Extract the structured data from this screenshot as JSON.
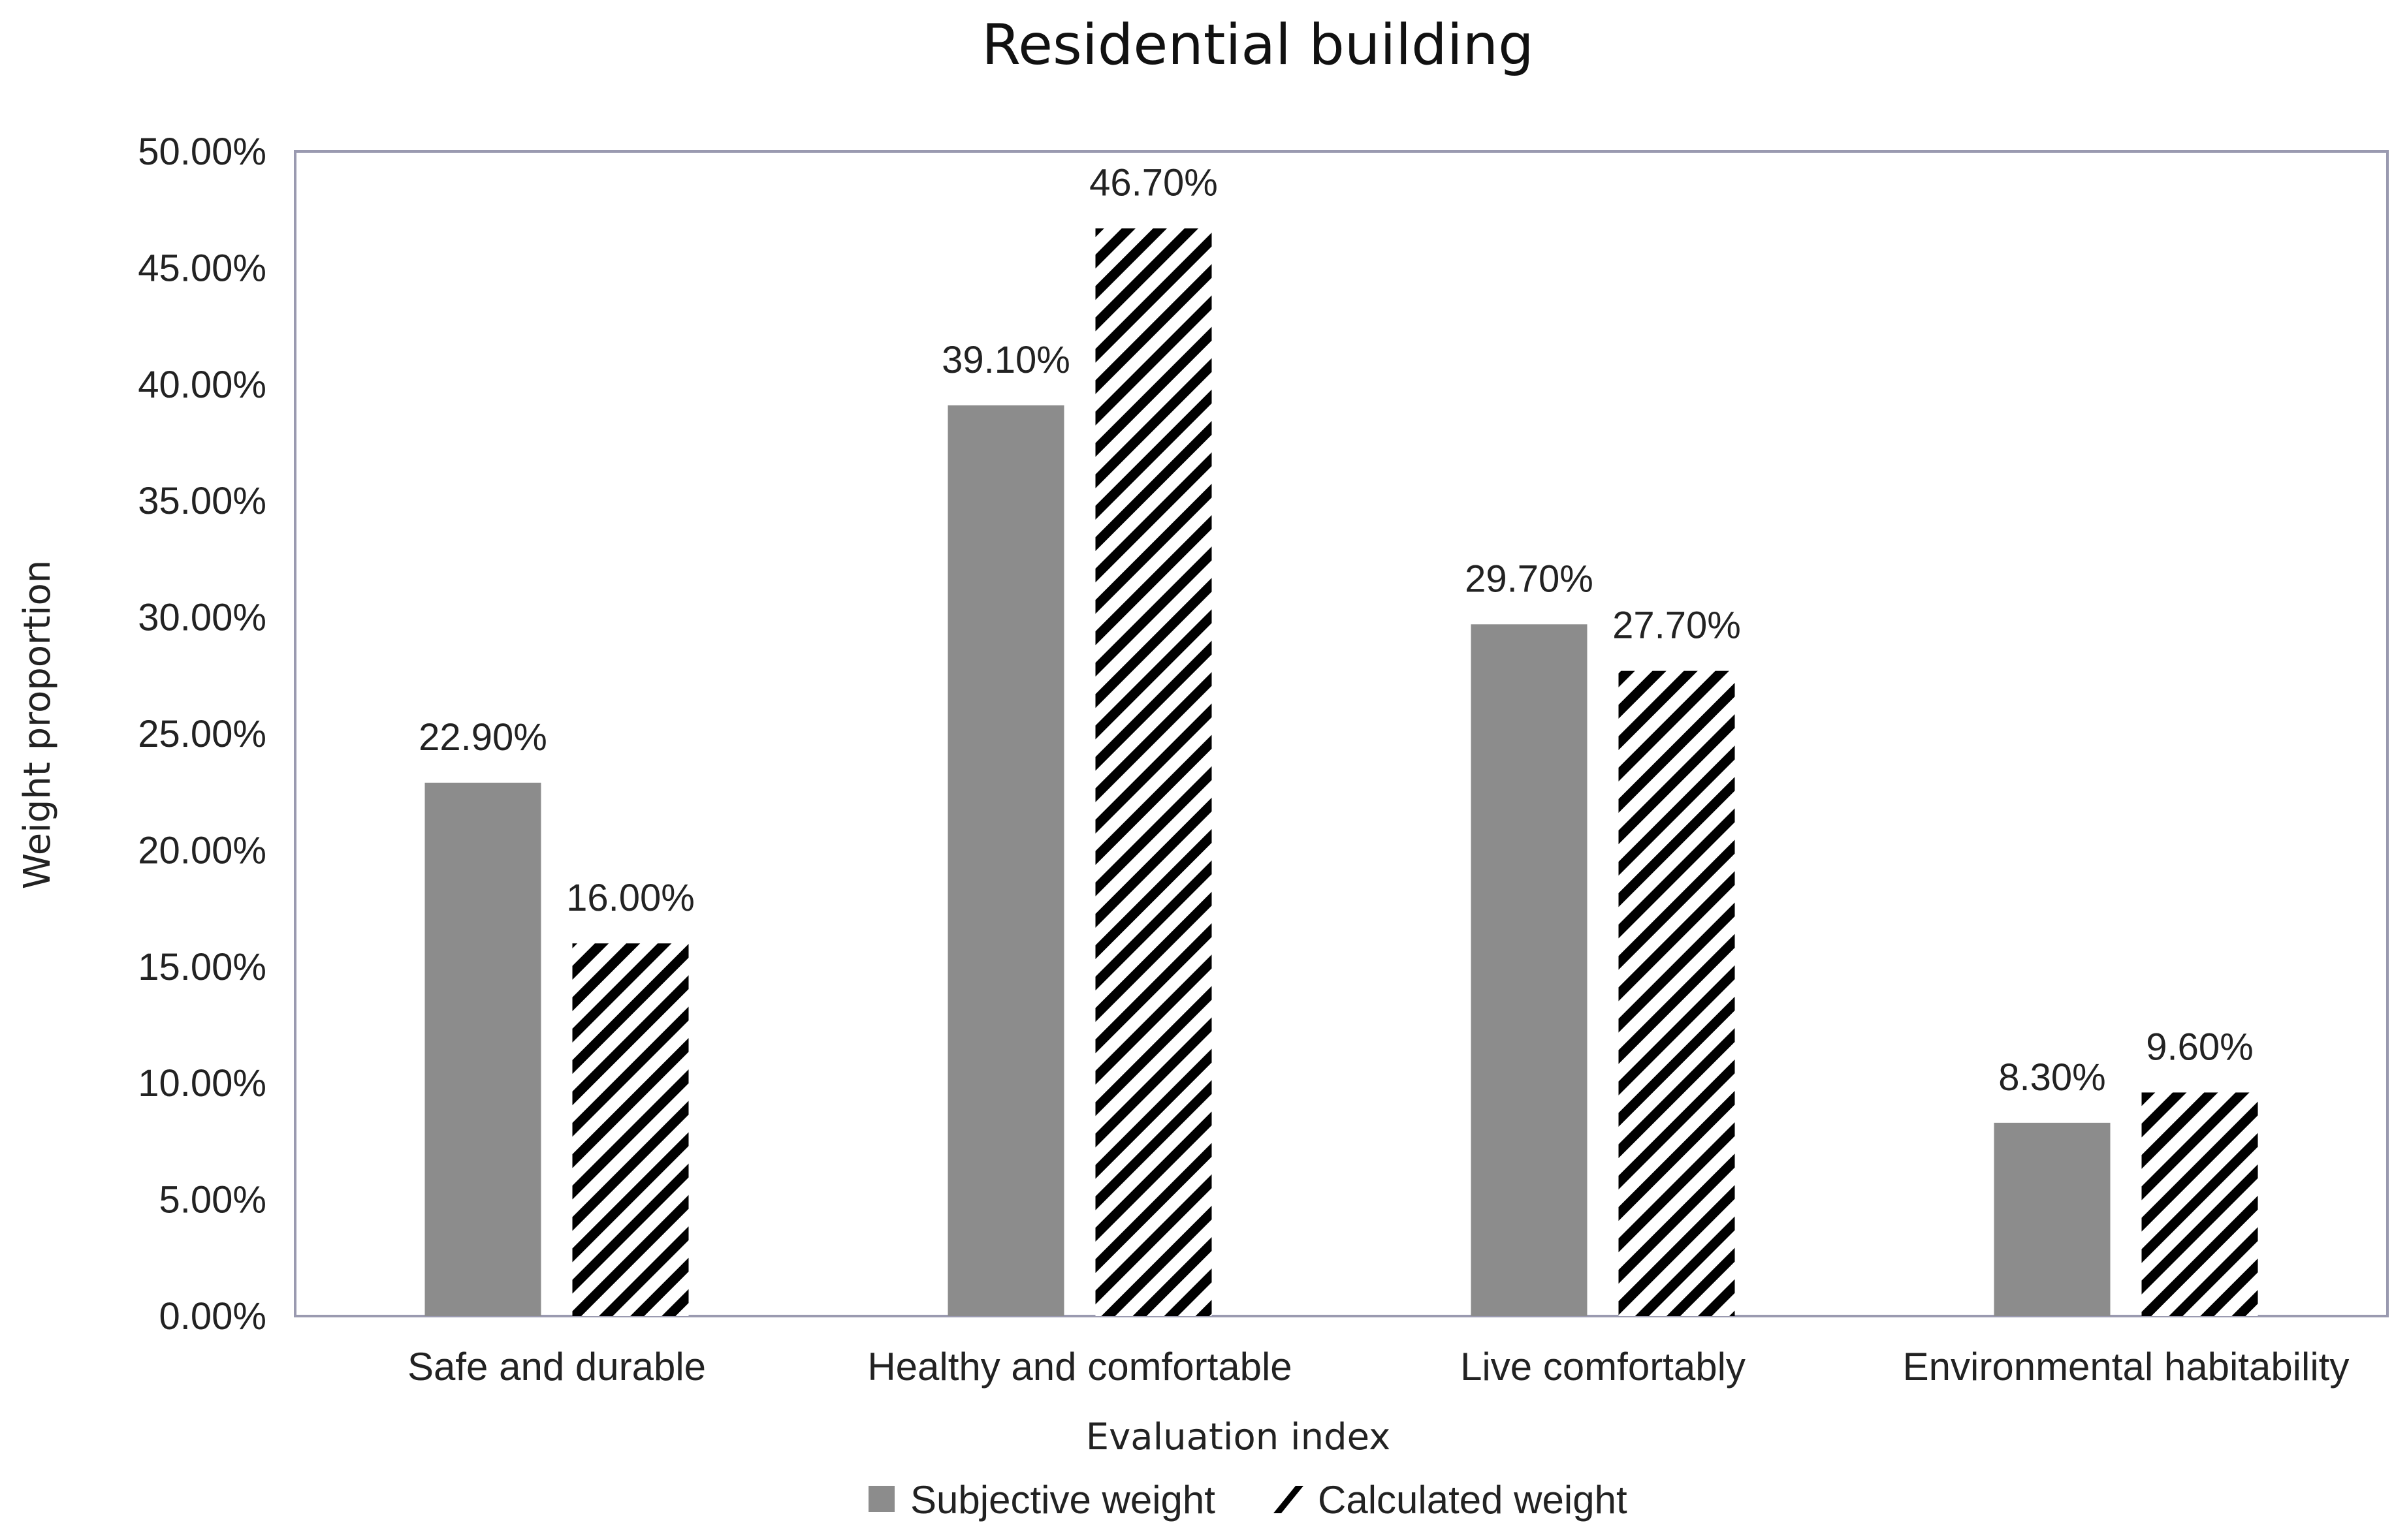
{
  "chart_data": {
    "type": "bar",
    "title": "Residential building",
    "xlabel": "Evaluation index",
    "ylabel": "Weight proportion",
    "ylim": [
      0,
      50
    ],
    "y_ticks": [
      "0.00%",
      "5.00%",
      "10.00%",
      "15.00%",
      "20.00%",
      "25.00%",
      "30.00%",
      "35.00%",
      "40.00%",
      "45.00%",
      "50.00%"
    ],
    "categories": [
      "Safe and durable",
      "Healthy and comfortable",
      "Live comfortably",
      "Environmental habitability"
    ],
    "series": [
      {
        "name": "Subjective weight",
        "fill": "#8c8c8c",
        "pattern": "solid",
        "values": [
          22.9,
          39.1,
          29.7,
          8.3
        ],
        "labels": [
          "22.90%",
          "39.10%",
          "29.70%",
          "8.30%"
        ]
      },
      {
        "name": "Calculated weight",
        "fill": "#000000",
        "pattern": "diagonal-stripes",
        "values": [
          16.0,
          46.7,
          27.7,
          9.6
        ],
        "labels": [
          "16.00%",
          "46.70%",
          "27.70%",
          "9.60%"
        ]
      }
    ],
    "legend_position": "bottom-center",
    "grid": false
  }
}
